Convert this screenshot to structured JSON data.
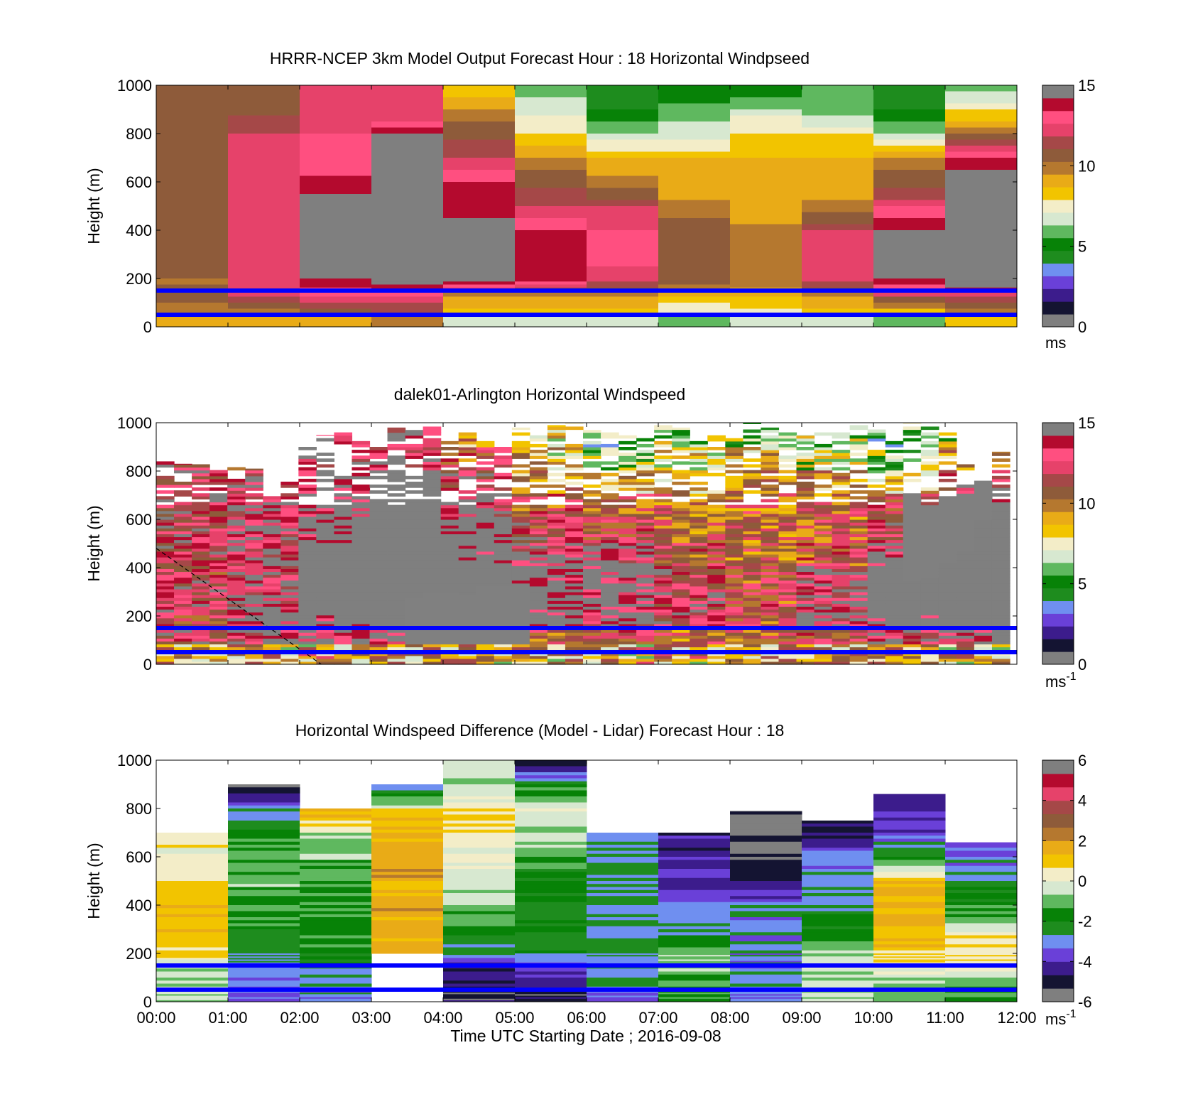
{
  "colors": {
    "windspeed_colormap": [
      "#7f7f7f",
      "#141432",
      "#3c1c8c",
      "#6a40d8",
      "#6f8ff0",
      "#1e8c1e",
      "#078207",
      "#5fb85f",
      "#d7e8d0",
      "#f3edc8",
      "#f2c400",
      "#e9ab17",
      "#b5782f",
      "#8e5b3a",
      "#a54848",
      "#e6426a",
      "#ff4f80",
      "#b40a2e",
      "#7f7f7f"
    ],
    "difference_colormap": [
      "#7f7f7f",
      "#141432",
      "#3c1c8c",
      "#6a40d8",
      "#6f8ff0",
      "#1e8c1e",
      "#078207",
      "#5fb85f",
      "#d7e8d0",
      "#f3edc8",
      "#f2c400",
      "#e9ab17",
      "#b5782f",
      "#8e5b3a",
      "#a54848",
      "#e6426a",
      "#b40a2e",
      "#7f7f7f"
    ],
    "reference_lines": "#0000ff"
  },
  "x_axis": {
    "ticks": [
      "00:00",
      "01:00",
      "02:00",
      "03:00",
      "04:00",
      "05:00",
      "06:00",
      "07:00",
      "08:00",
      "09:00",
      "10:00",
      "11:00",
      "12:00"
    ],
    "label": "Time UTC  Starting Date ; 2016-09-08"
  },
  "reference_lines_m": [
    150,
    50
  ],
  "chart_data": [
    {
      "type": "heatmap",
      "title": "HRRR-NCEP 3km Model Output   Forecast Hour : 18 Horizontal Windpseed",
      "ylabel": "Height (m)",
      "ylim": [
        0,
        1000
      ],
      "yticks": [
        "0",
        "200",
        "400",
        "600",
        "800",
        "1000"
      ],
      "colorbar": {
        "range": [
          0,
          15
        ],
        "ticks": [
          "0",
          "5",
          "10",
          "15"
        ],
        "unit": "ms"
      },
      "x_hours": [
        0,
        1,
        2,
        3,
        4,
        5,
        6,
        7,
        8,
        9,
        10,
        11
      ],
      "height_bands_m": [
        1000,
        900,
        800,
        700,
        600,
        500,
        400,
        300,
        200,
        150,
        50
      ],
      "values_by_hour": [
        [
          11,
          11,
          11,
          11,
          11,
          11,
          11,
          11,
          10,
          11,
          9
        ],
        [
          11,
          11,
          12,
          12,
          12,
          12,
          12,
          12,
          12,
          12,
          9
        ],
        [
          12,
          12,
          13,
          13,
          14,
          15,
          15,
          15,
          14,
          13,
          9
        ],
        [
          12,
          12,
          15,
          15,
          15,
          15,
          16,
          16,
          15,
          13,
          10
        ],
        [
          8,
          10,
          11,
          12,
          14,
          14,
          15,
          15,
          15,
          10,
          7
        ],
        [
          6,
          7,
          8,
          10,
          11,
          12,
          14,
          14,
          14,
          10,
          7
        ],
        [
          4,
          5,
          7,
          9,
          10,
          12,
          13,
          13,
          12,
          10,
          7
        ],
        [
          5,
          6,
          7,
          9,
          9,
          10,
          11,
          11,
          11,
          9,
          6
        ],
        [
          5,
          7,
          8,
          9,
          9,
          9,
          10,
          10,
          10,
          9,
          7
        ],
        [
          6,
          6,
          8,
          9,
          9,
          10,
          12,
          12,
          12,
          10,
          7
        ],
        [
          4,
          5,
          7,
          10,
          11,
          13,
          15,
          15,
          14,
          12,
          6
        ],
        [
          6,
          8,
          11,
          14,
          15,
          18,
          18,
          16,
          16,
          12,
          8
        ]
      ]
    },
    {
      "type": "heatmap",
      "title": "dalek01-Arlington  Horizontal Windspeed",
      "ylabel": "Height (m)",
      "ylim": [
        0,
        1000
      ],
      "yticks": [
        "0",
        "200",
        "400",
        "600",
        "800",
        "1000"
      ],
      "colorbar": {
        "range": [
          0,
          15
        ],
        "ticks": [
          "0",
          "5",
          "10",
          "15"
        ],
        "unit": "ms",
        "unit_exponent": "-1"
      },
      "columns": 48,
      "data_top_m": [
        850,
        830,
        840,
        820,
        830,
        810,
        700,
        780,
        900,
        950,
        960,
        930,
        900,
        980,
        970,
        990,
        940,
        960,
        930,
        920,
        980,
        960,
        990,
        1000,
        970,
        960,
        950,
        940,
        990,
        980,
        960,
        950,
        940,
        1000,
        980,
        960,
        950,
        980,
        960,
        990,
        980,
        960,
        1000,
        990,
        960,
        830,
        760,
        880
      ],
      "gray_region_m": [
        {
          "col": 6,
          "from": 120,
          "to": 230
        },
        {
          "col": 14,
          "from": 80,
          "to": 270
        },
        {
          "col": 15,
          "from": 80,
          "to": 290
        },
        {
          "col": 16,
          "from": 80,
          "to": 300
        },
        {
          "col": 17,
          "from": 80,
          "to": 280
        },
        {
          "col": 18,
          "from": 80,
          "to": 320
        },
        {
          "col": 19,
          "from": 80,
          "to": 320
        },
        {
          "col": 20,
          "from": 80,
          "to": 330
        },
        {
          "col": 42,
          "from": 340,
          "to": 700
        },
        {
          "col": 43,
          "from": 360,
          "to": 660
        },
        {
          "col": 44,
          "from": 420,
          "to": 680
        },
        {
          "col": 45,
          "from": 460,
          "to": 700
        },
        {
          "col": 46,
          "from": 600,
          "to": 880
        }
      ],
      "dashed_line": {
        "from": {
          "hour": 0,
          "height_m": 480
        },
        "to": {
          "hour": 2.3,
          "height_m": 0
        }
      }
    },
    {
      "type": "heatmap",
      "title": "Horizontal Windspeed Difference (Model - Lidar) Forecast Hour : 18",
      "ylabel": "Height (m)",
      "ylim": [
        0,
        1000
      ],
      "yticks": [
        "0",
        "200",
        "400",
        "600",
        "800",
        "1000"
      ],
      "colorbar": {
        "range": [
          -6,
          6
        ],
        "ticks": [
          "-6",
          "-4",
          "-2",
          "0",
          "2",
          "4",
          "6"
        ],
        "unit": "ms",
        "unit_exponent": "-1"
      },
      "x_hours": [
        0,
        1,
        2,
        3,
        4,
        5,
        6,
        7,
        8,
        9,
        10,
        11
      ],
      "data_top_m": [
        715,
        1000,
        805,
        900,
        1000,
        1000,
        760,
        750,
        790,
        750,
        860,
        660
      ],
      "height_bands_m": [
        1000,
        900,
        800,
        700,
        600,
        500,
        400,
        300,
        200,
        150,
        50
      ],
      "values_by_hour": [
        [
          null,
          null,
          null,
          0.5,
          0.3,
          0.8,
          1.2,
          1.5,
          0.5,
          -0.3,
          -0.5
        ],
        [
          null,
          -5.5,
          -2.5,
          -1.5,
          -1.2,
          -1.0,
          -1.3,
          -2.0,
          -2.5,
          -3.0,
          -3.5
        ],
        [
          null,
          null,
          1.5,
          -0.5,
          -1.0,
          -1.2,
          -1.3,
          -1.5,
          -1.8,
          -2.5,
          -3.0
        ],
        [
          null,
          -3.0,
          0.8,
          1.5,
          1.6,
          1.7,
          1.6,
          1.5,
          null,
          null,
          null
        ],
        [
          -0.2,
          -0.5,
          0.8,
          0.2,
          0.0,
          -0.2,
          -0.8,
          -2.0,
          -3.0,
          -4.5,
          -5.0
        ],
        [
          -5.0,
          -1.5,
          -0.3,
          -0.5,
          -1.5,
          -1.8,
          -2.0,
          -2.2,
          -2.5,
          -4.0,
          -5.0
        ],
        [
          null,
          null,
          null,
          -3.0,
          -2.5,
          -2.5,
          -2.6,
          -2.5,
          -2.5,
          -2.8,
          -3.2
        ],
        [
          null,
          null,
          null,
          -4.5,
          -4.0,
          -4.2,
          -3.0,
          -2.5,
          -0.5,
          -1.0,
          -1.5
        ],
        [
          null,
          null,
          -5.5,
          -5.8,
          -5.5,
          -4.5,
          -3.0,
          -3.0,
          -3.0,
          -3.0,
          -3.0
        ],
        [
          null,
          null,
          -5.0,
          -4.5,
          -3.0,
          -3.0,
          -2.5,
          -1.5,
          -0.5,
          -0.3,
          -0.5
        ],
        [
          null,
          -4.5,
          -4.0,
          -3.5,
          -1.5,
          1.5,
          1.5,
          1.2,
          0.8,
          0.0,
          -1.0
        ],
        [
          null,
          null,
          null,
          -4.0,
          -3.0,
          -2.5,
          -1.5,
          0.3,
          0.8,
          0.0,
          -1.5
        ]
      ]
    }
  ]
}
